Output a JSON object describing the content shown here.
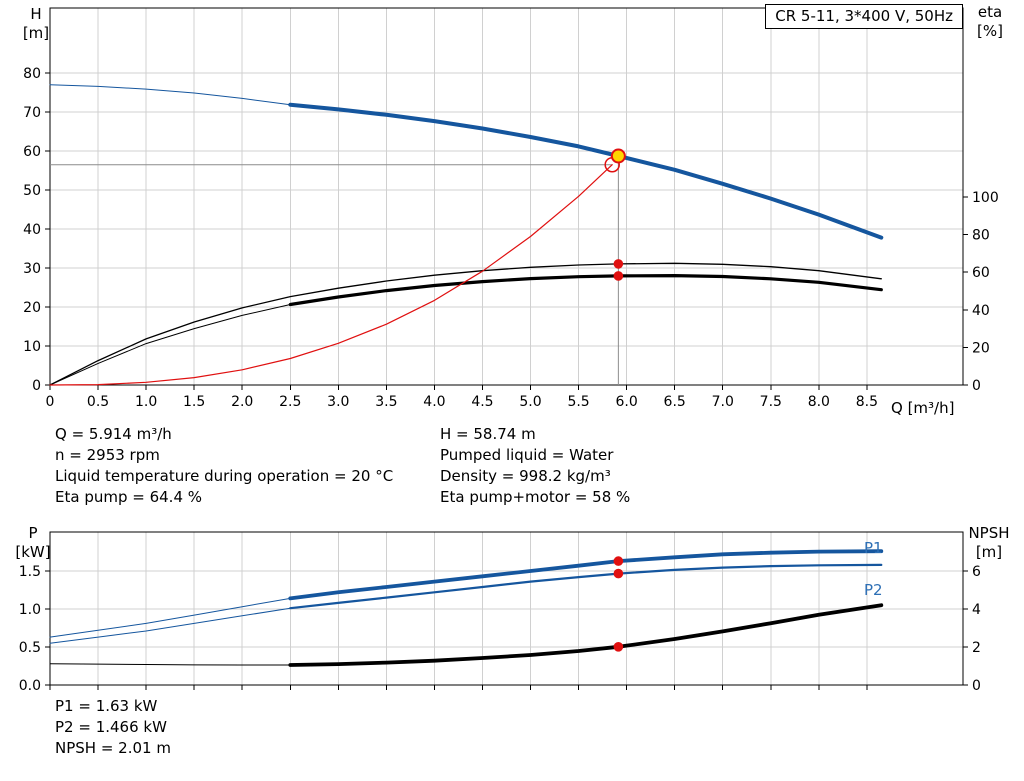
{
  "colors": {
    "curve_blue": "#15569e",
    "label_blue": "#2d6fb5",
    "red": "#e01010",
    "yellow": "#ffd500",
    "black": "#000000",
    "grid": "#d0d0d0",
    "guide": "#8c8c8c"
  },
  "info_top": {
    "left": [
      "Q = 5.914 m³/h",
      "n = 2953 rpm",
      "Liquid temperature during operation = 20 °C",
      "Eta pump = 64.4 %"
    ],
    "right": [
      "H = 58.74 m",
      "Pumped liquid = Water",
      "Density = 998.2 kg/m³",
      "Eta pump+motor = 58 %"
    ]
  },
  "info_bottom": {
    "lines": [
      "P1 = 1.63 kW",
      "P2 = 1.466 kW",
      "NPSH = 2.01 m"
    ]
  },
  "chart_data": [
    {
      "id": "qh-chart",
      "type": "line",
      "title": "CR 5-11, 3*400 V, 50Hz",
      "x": {
        "label": "Q [m³/h]",
        "min": 0,
        "max": 9.5,
        "ticks": [
          0,
          0.5,
          1,
          1.5,
          2,
          2.5,
          3,
          3.5,
          4,
          4.5,
          5,
          5.5,
          6,
          6.5,
          7,
          7.5,
          8,
          8.5
        ],
        "tick_labels": [
          "0",
          "0.5",
          "1.0",
          "1.5",
          "2.0",
          "2.5",
          "3.0",
          "3.5",
          "4.0",
          "4.5",
          "5.0",
          "5.5",
          "6.0",
          "6.5",
          "7.0",
          "7.5",
          "8.0",
          "8.5"
        ]
      },
      "y_left": {
        "label": "H",
        "unit": "[m]",
        "min": 0,
        "max": 96.7,
        "ticks": [
          0,
          10,
          20,
          30,
          40,
          50,
          60,
          70,
          80
        ]
      },
      "y_right": {
        "label": "eta",
        "unit": "[%]",
        "min": 0,
        "max": 200.5,
        "ticks": [
          0,
          20,
          40,
          60,
          80,
          100
        ]
      },
      "series": [
        {
          "name": "head-curve",
          "label": "QH",
          "axis": "left",
          "color": "#15569e",
          "width": 4,
          "width_thin": 1,
          "split_at": 2.5,
          "points": [
            [
              0,
              77
            ],
            [
              0.5,
              76.6
            ],
            [
              1,
              75.9
            ],
            [
              1.5,
              74.9
            ],
            [
              2,
              73.5
            ],
            [
              2.5,
              71.9
            ],
            [
              3,
              70.7
            ],
            [
              3.5,
              69.3
            ],
            [
              4,
              67.7
            ],
            [
              4.5,
              65.8
            ],
            [
              5,
              63.6
            ],
            [
              5.5,
              61.2
            ],
            [
              5.914,
              58.74
            ],
            [
              6.5,
              55.2
            ],
            [
              7,
              51.6
            ],
            [
              7.5,
              47.8
            ],
            [
              8,
              43.7
            ],
            [
              8.65,
              37.8
            ]
          ]
        },
        {
          "name": "eta-pump-curve",
          "label": "Eta pump",
          "axis": "right",
          "color": "#000000",
          "width": 1.3,
          "points": [
            [
              0,
              0
            ],
            [
              0.5,
              13
            ],
            [
              1,
              24.5
            ],
            [
              1.5,
              33.5
            ],
            [
              2,
              41
            ],
            [
              2.5,
              47
            ],
            [
              3,
              51.5
            ],
            [
              3.5,
              55.3
            ],
            [
              4,
              58.4
            ],
            [
              4.5,
              60.8
            ],
            [
              5,
              62.6
            ],
            [
              5.5,
              63.8
            ],
            [
              5.914,
              64.4
            ],
            [
              6.5,
              64.7
            ],
            [
              7,
              64.2
            ],
            [
              7.5,
              62.9
            ],
            [
              8,
              60.8
            ],
            [
              8.65,
              56.5
            ]
          ]
        },
        {
          "name": "eta-pump-motor-curve",
          "label": "Eta pump+motor",
          "axis": "right",
          "color": "#000000",
          "width": 3.2,
          "width_thin": 1,
          "split_at": 2.5,
          "points": [
            [
              0,
              0
            ],
            [
              0.5,
              11.5
            ],
            [
              1,
              22
            ],
            [
              1.5,
              30
            ],
            [
              2,
              37
            ],
            [
              2.5,
              42.8
            ],
            [
              3,
              46.8
            ],
            [
              3.5,
              50.2
            ],
            [
              4,
              52.9
            ],
            [
              4.5,
              55
            ],
            [
              5,
              56.6
            ],
            [
              5.5,
              57.6
            ],
            [
              5.914,
              58
            ],
            [
              6.5,
              58.2
            ],
            [
              7,
              57.7
            ],
            [
              7.5,
              56.5
            ],
            [
              8,
              54.6
            ],
            [
              8.65,
              50.7
            ]
          ]
        },
        {
          "name": "system-curve",
          "label": "System curve",
          "axis": "left",
          "color": "#e01010",
          "width": 1.2,
          "points": [
            [
              0,
              0
            ],
            [
              0.5,
              0.1
            ],
            [
              1,
              0.7
            ],
            [
              1.5,
              1.9
            ],
            [
              2,
              3.9
            ],
            [
              2.5,
              6.8
            ],
            [
              3,
              10.7
            ],
            [
              3.5,
              15.6
            ],
            [
              4,
              21.7
            ],
            [
              4.5,
              29.2
            ],
            [
              5,
              38.1
            ],
            [
              5.5,
              48.4
            ],
            [
              5.85,
              56.5
            ]
          ]
        }
      ],
      "guides": [
        {
          "name": "duty-head-guide",
          "axis": "left",
          "from": [
            0,
            56.5
          ],
          "to": [
            5.85,
            56.5
          ]
        },
        {
          "name": "duty-flow-guide",
          "axis": "left",
          "from": [
            5.914,
            0
          ],
          "to": [
            5.914,
            58.74
          ]
        }
      ],
      "markers": [
        {
          "name": "requested-duty-point",
          "style": "open",
          "axis": "left",
          "x": 5.85,
          "y": 56.5,
          "color": "#e01010",
          "r": 7
        },
        {
          "name": "duty-point",
          "style": "filled",
          "axis": "left",
          "x": 5.914,
          "y": 58.74,
          "fill": "#ffd500",
          "stroke": "#e01010",
          "r": 6.5
        },
        {
          "name": "eta-pump-duty-dot",
          "style": "dot",
          "axis": "right",
          "x": 5.914,
          "y": 64.4,
          "fill": "#e01010",
          "r": 4.8
        },
        {
          "name": "eta-pump-motor-duty-dot",
          "style": "dot",
          "axis": "right",
          "x": 5.914,
          "y": 58,
          "fill": "#e01010",
          "r": 4.8
        }
      ]
    },
    {
      "id": "power-npsh-chart",
      "type": "line",
      "title": "",
      "x": {
        "label": "",
        "min": 0,
        "max": 9.5,
        "ticks": [
          0,
          0.5,
          1,
          1.5,
          2,
          2.5,
          3,
          3.5,
          4,
          4.5,
          5,
          5.5,
          6,
          6.5,
          7,
          7.5,
          8,
          8.5
        ]
      },
      "y_left": {
        "label": "P",
        "unit": "[kW]",
        "min": 0,
        "max": 2.013,
        "ticks": [
          0,
          0.5,
          1,
          1.5
        ],
        "tick_labels": [
          "0.0",
          "0.5",
          "1.0",
          "1.5"
        ]
      },
      "y_right": {
        "label": "NPSH",
        "unit": "[m]",
        "min": 0,
        "max": 8.05,
        "ticks": [
          0,
          2,
          4,
          6
        ]
      },
      "series": [
        {
          "name": "p1-curve",
          "label": "P1",
          "axis": "left",
          "color": "#15569e",
          "width": 3.8,
          "width_thin": 1,
          "split_at": 2.5,
          "points": [
            [
              0,
              0.63
            ],
            [
              0.5,
              0.72
            ],
            [
              1,
              0.81
            ],
            [
              1.5,
              0.92
            ],
            [
              2,
              1.03
            ],
            [
              2.5,
              1.14
            ],
            [
              3,
              1.22
            ],
            [
              3.5,
              1.29
            ],
            [
              4,
              1.36
            ],
            [
              4.5,
              1.43
            ],
            [
              5,
              1.5
            ],
            [
              5.5,
              1.57
            ],
            [
              5.914,
              1.63
            ],
            [
              6.5,
              1.68
            ],
            [
              7,
              1.72
            ],
            [
              7.5,
              1.74
            ],
            [
              8,
              1.755
            ],
            [
              8.65,
              1.76
            ]
          ]
        },
        {
          "name": "p2-curve",
          "label": "P2",
          "axis": "left",
          "color": "#15569e",
          "width": 2.2,
          "width_thin": 1,
          "split_at": 2.5,
          "points": [
            [
              0,
              0.55
            ],
            [
              0.5,
              0.63
            ],
            [
              1,
              0.71
            ],
            [
              1.5,
              0.81
            ],
            [
              2,
              0.91
            ],
            [
              2.5,
              1.01
            ],
            [
              3,
              1.08
            ],
            [
              3.5,
              1.15
            ],
            [
              4,
              1.22
            ],
            [
              4.5,
              1.29
            ],
            [
              5,
              1.36
            ],
            [
              5.5,
              1.42
            ],
            [
              5.914,
              1.466
            ],
            [
              6.5,
              1.515
            ],
            [
              7,
              1.545
            ],
            [
              7.5,
              1.565
            ],
            [
              8,
              1.575
            ],
            [
              8.65,
              1.58
            ]
          ]
        },
        {
          "name": "npsh-curve",
          "label": "NPSH",
          "axis": "right",
          "color": "#000000",
          "width": 3.8,
          "width_thin": 1,
          "split_at": 2.5,
          "points": [
            [
              0,
              1.12
            ],
            [
              0.5,
              1.1
            ],
            [
              1,
              1.08
            ],
            [
              1.5,
              1.06
            ],
            [
              2,
              1.05
            ],
            [
              2.5,
              1.05
            ],
            [
              3,
              1.1
            ],
            [
              3.5,
              1.18
            ],
            [
              4,
              1.28
            ],
            [
              4.5,
              1.42
            ],
            [
              5,
              1.58
            ],
            [
              5.5,
              1.79
            ],
            [
              5.914,
              2.01
            ],
            [
              6.5,
              2.42
            ],
            [
              7,
              2.82
            ],
            [
              7.5,
              3.25
            ],
            [
              8,
              3.7
            ],
            [
              8.65,
              4.2
            ]
          ]
        }
      ],
      "guides": [],
      "markers": [
        {
          "name": "p1-duty-dot",
          "style": "dot",
          "axis": "left",
          "x": 5.914,
          "y": 1.63,
          "fill": "#e01010",
          "r": 4.8
        },
        {
          "name": "p2-duty-dot",
          "style": "dot",
          "axis": "left",
          "x": 5.914,
          "y": 1.466,
          "fill": "#e01010",
          "r": 4.8
        },
        {
          "name": "npsh-duty-dot",
          "style": "dot",
          "axis": "right",
          "x": 5.914,
          "y": 2.01,
          "fill": "#e01010",
          "r": 4.8
        }
      ]
    }
  ]
}
